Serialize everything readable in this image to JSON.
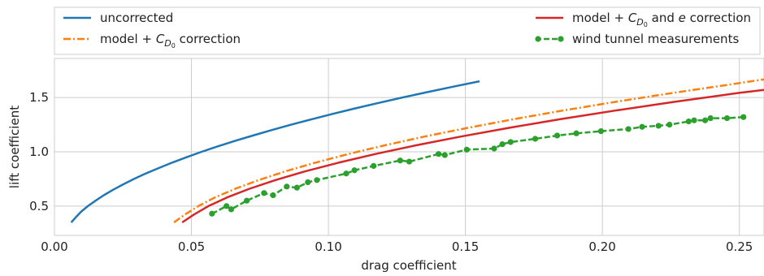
{
  "chart_data": {
    "type": "line",
    "title": "",
    "xlabel": "drag coefficient",
    "ylabel": "lift coefficient",
    "xlim": [
      0.0,
      0.259
    ],
    "ylim": [
      0.23,
      1.86
    ],
    "xticks": [
      0.0,
      0.05,
      0.1,
      0.15,
      0.2,
      0.25
    ],
    "xtick_labels": [
      "0.00",
      "0.05",
      "0.10",
      "0.15",
      "0.20",
      "0.25"
    ],
    "yticks": [
      0.5,
      1.0,
      1.5
    ],
    "ytick_labels": [
      "0.5",
      "1.0",
      "1.5"
    ],
    "grid": true,
    "legend_position": "top, outside plot area (two columns)",
    "series": [
      {
        "name": "uncorrected",
        "color": "#1f77b4",
        "style": "solid",
        "x": [
          0.0061,
          0.0079,
          0.0098,
          0.0122,
          0.015,
          0.018,
          0.0214,
          0.0251,
          0.029,
          0.0333,
          0.038,
          0.0429,
          0.0482,
          0.0537,
          0.0596,
          0.0659,
          0.0724,
          0.0792,
          0.0864,
          0.0939,
          0.1017,
          0.1098,
          0.1183,
          0.127,
          0.1361,
          0.1455,
          0.1552
        ],
        "y": [
          0.35,
          0.4,
          0.45,
          0.5,
          0.55,
          0.6,
          0.65,
          0.7,
          0.75,
          0.8,
          0.85,
          0.9,
          0.95,
          1.0,
          1.05,
          1.1,
          1.15,
          1.2,
          1.25,
          1.3,
          1.35,
          1.4,
          1.45,
          1.5,
          1.55,
          1.6,
          1.65
        ]
      },
      {
        "name": "model + C_D0 correction",
        "color": "#ff7f0e",
        "style": "dashdot",
        "x": [
          0.0436,
          0.0475,
          0.0525,
          0.0586,
          0.066,
          0.0746,
          0.0843,
          0.0952,
          0.1073,
          0.1206,
          0.135,
          0.1507,
          0.1675,
          0.1855,
          0.2047,
          0.2251,
          0.2466,
          0.259
        ],
        "y": [
          0.35,
          0.42,
          0.5,
          0.58,
          0.66,
          0.74,
          0.82,
          0.9,
          0.98,
          1.06,
          1.14,
          1.22,
          1.3,
          1.38,
          1.46,
          1.54,
          1.62,
          1.667
        ]
      },
      {
        "name": "model + C_D0 and e correction",
        "color": "#d62728",
        "style": "solid",
        "x": [
          0.0466,
          0.0508,
          0.0562,
          0.063,
          0.0712,
          0.0807,
          0.0915,
          0.1037,
          0.1172,
          0.132,
          0.1482,
          0.1657,
          0.1845,
          0.2047,
          0.2262,
          0.2491,
          0.259
        ],
        "y": [
          0.35,
          0.42,
          0.5,
          0.58,
          0.66,
          0.74,
          0.82,
          0.9,
          0.98,
          1.06,
          1.14,
          1.22,
          1.3,
          1.38,
          1.46,
          1.54,
          1.571
        ]
      },
      {
        "name": "wind tunnel measurements",
        "color": "#2ca02c",
        "style": "dashed-markers",
        "x": [
          0.0575,
          0.0628,
          0.0645,
          0.0702,
          0.0765,
          0.0798,
          0.0848,
          0.0885,
          0.0925,
          0.0958,
          0.1065,
          0.1095,
          0.1165,
          0.1262,
          0.1295,
          0.1402,
          0.1425,
          0.1505,
          0.1605,
          0.1635,
          0.1665,
          0.1755,
          0.1835,
          0.1905,
          0.1995,
          0.2095,
          0.2145,
          0.2205,
          0.2245,
          0.2315,
          0.2335,
          0.2375,
          0.2395,
          0.2455,
          0.2515
        ],
        "y": [
          0.43,
          0.5,
          0.47,
          0.55,
          0.62,
          0.6,
          0.68,
          0.67,
          0.72,
          0.74,
          0.8,
          0.83,
          0.87,
          0.92,
          0.91,
          0.98,
          0.97,
          1.02,
          1.03,
          1.07,
          1.09,
          1.12,
          1.15,
          1.17,
          1.19,
          1.21,
          1.23,
          1.24,
          1.25,
          1.28,
          1.29,
          1.29,
          1.31,
          1.31,
          1.32
        ]
      }
    ],
    "legend": [
      "uncorrected",
      "model + C_D0 correction",
      "model + C_D0 and e correction",
      "wind tunnel measurements"
    ]
  }
}
